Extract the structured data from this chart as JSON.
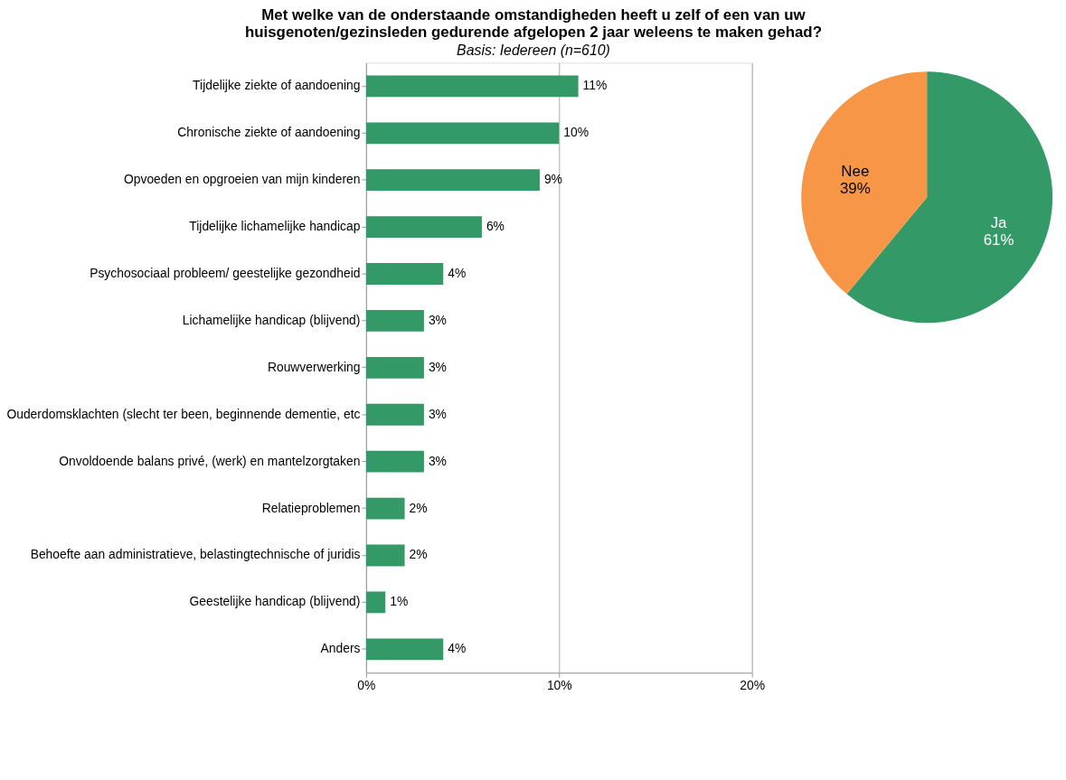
{
  "chart_data": [
    {
      "type": "bar",
      "orientation": "horizontal",
      "title": "Met welke van de onderstaande omstandigheden heeft u zelf of een van uw huisgenoten/gezinsleden gedurende afgelopen 2 jaar weleens te maken gehad?",
      "subtitle": "Basis: Iedereen (n=610)",
      "categories": [
        "Tijdelijke ziekte of aandoening",
        "Chronische ziekte of aandoening",
        "Opvoeden en opgroeien van mijn kinderen",
        "Tijdelijke lichamelijke handicap",
        "Psychosociaal probleem/ geestelijke gezondheid",
        "Lichamelijke handicap (blijvend)",
        "Rouwverwerking",
        "Ouderdomsklachten (slecht ter been, beginnende dementie, etc",
        "Onvoldoende balans privé, (werk) en  mantelzorgtaken",
        "Relatieproblemen",
        "Behoefte aan administratieve, belastingtechnische of juridis",
        "Geestelijke handicap (blijvend)",
        "Anders"
      ],
      "values": [
        11,
        10,
        9,
        6,
        4,
        3,
        3,
        3,
        3,
        2,
        2,
        1,
        4
      ],
      "value_labels": [
        "11%",
        "10%",
        "9%",
        "6%",
        "4%",
        "3%",
        "3%",
        "3%",
        "3%",
        "2%",
        "2%",
        "1%",
        "4%"
      ],
      "color": "#339966",
      "xlim": [
        0,
        20
      ],
      "xticks": [
        {
          "value": 0,
          "label": "0%"
        },
        {
          "value": 10,
          "label": "10%"
        },
        {
          "value": 20,
          "label": "20%"
        }
      ],
      "grid": "x"
    },
    {
      "type": "pie",
      "categories": [
        "Ja",
        "Nee"
      ],
      "values": [
        61,
        39
      ],
      "colors": [
        "#339966",
        "#f79646"
      ],
      "value_labels": [
        "61%",
        "39%"
      ]
    }
  ]
}
